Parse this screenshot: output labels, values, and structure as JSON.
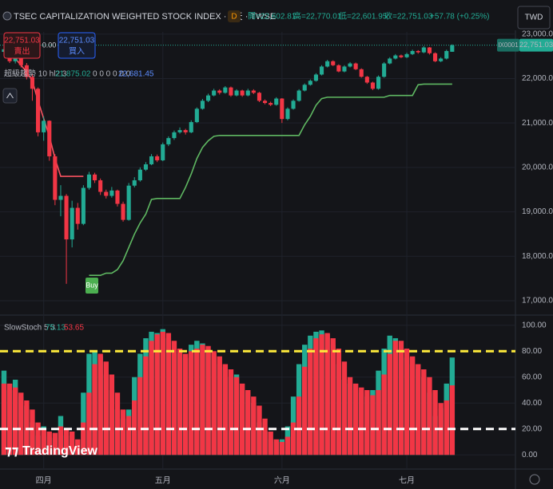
{
  "toolbar": {
    "title": "TSEC CAPITALIZATION WEIGHTED STOCK INDEX · 1天 · TWSE",
    "badge": "D",
    "open": "開=22,602.81",
    "high": "高=22,770.01",
    "low": "低=22,601.95",
    "close": "收=22,751.03",
    "change": "+57.78 (+0.25%)",
    "currency": "TWD"
  },
  "trade": {
    "sell_price": "22,751.03",
    "sell": "賣出",
    "spread": "0.00",
    "buy_price": "22,751.03",
    "buy": "買入"
  },
  "branding": "TradingView",
  "chart_data": [
    {
      "type": "candlestick",
      "symbol": "IX0001",
      "last_label": "22,751.03",
      "indicator": {
        "name": "超級趨勢 10 hl2 3",
        "values": [
          "21,875.02",
          "0 0 0 0 0 0",
          "22,681.45"
        ]
      },
      "signal": "Buy",
      "up_color": "#22ab94",
      "down_color": "#f23645",
      "grid": true,
      "x": [
        0,
        1,
        2,
        3,
        4,
        5,
        6,
        7,
        8,
        9,
        10,
        11,
        12,
        13,
        14,
        15,
        16,
        17,
        18,
        19,
        20,
        21,
        22,
        23,
        24,
        25,
        26,
        27,
        28,
        29,
        30,
        31,
        32,
        33,
        34,
        35,
        36,
        37,
        38,
        39,
        40,
        41,
        42,
        43,
        44,
        45,
        46,
        47,
        48,
        49,
        50,
        51,
        52,
        53,
        54,
        55,
        56,
        57,
        58,
        59,
        60,
        61,
        62,
        63,
        64,
        65,
        66,
        67,
        68,
        69,
        70,
        71,
        72,
        73,
        74,
        75,
        76,
        77,
        78,
        79
      ],
      "xlim": [
        -0.7,
        90.15
      ],
      "ylim": [
        16730,
        23050
      ],
      "yticks": [
        {
          "value": 17000,
          "label": "17,000.00"
        },
        {
          "value": 18000,
          "label": "18,000.00"
        },
        {
          "value": 19000,
          "label": "19,000.00"
        },
        {
          "value": 20000,
          "label": "20,000.00"
        },
        {
          "value": 21000,
          "label": "21,000.00"
        },
        {
          "value": 22000,
          "label": "22,000.00"
        },
        {
          "value": 23000,
          "label": "23,000.00"
        }
      ],
      "ohlc": [
        [
          22600,
          22720,
          22520,
          22660
        ],
        [
          22660,
          22700,
          22350,
          22390
        ],
        [
          22390,
          22560,
          22340,
          22480
        ],
        [
          22480,
          22520,
          22250,
          22300
        ],
        [
          22300,
          22350,
          21980,
          22035
        ],
        [
          22035,
          22100,
          21500,
          21770
        ],
        [
          21770,
          21800,
          20700,
          20790
        ],
        [
          20790,
          21150,
          20600,
          21050
        ],
        [
          21050,
          21060,
          20150,
          20250
        ],
        [
          20250,
          20300,
          19150,
          19270
        ],
        [
          19270,
          19600,
          18900,
          19360
        ],
        [
          19360,
          19400,
          17380,
          18380
        ],
        [
          18380,
          19250,
          18200,
          19090
        ],
        [
          19090,
          19200,
          18600,
          18730
        ],
        [
          18730,
          19600,
          18700,
          19540
        ],
        [
          19540,
          19900,
          19500,
          19840
        ],
        [
          19840,
          19880,
          19650,
          19710
        ],
        [
          19710,
          19750,
          19380,
          19450
        ],
        [
          19450,
          19500,
          19300,
          19360
        ],
        [
          19360,
          19560,
          19320,
          19480
        ],
        [
          19480,
          19500,
          19120,
          19180
        ],
        [
          19180,
          19230,
          18780,
          18820
        ],
        [
          18820,
          19650,
          18800,
          19590
        ],
        [
          19590,
          19780,
          19550,
          19710
        ],
        [
          19710,
          20000,
          19680,
          19950
        ],
        [
          19950,
          20120,
          19920,
          20070
        ],
        [
          20070,
          20300,
          20050,
          20250
        ],
        [
          20250,
          20290,
          20120,
          20160
        ],
        [
          20160,
          20560,
          20140,
          20520
        ],
        [
          20520,
          20700,
          20480,
          20660
        ],
        [
          20660,
          20830,
          20620,
          20790
        ],
        [
          20790,
          20900,
          20760,
          20840
        ],
        [
          20840,
          20870,
          20740,
          20790
        ],
        [
          20790,
          21060,
          20770,
          21020
        ],
        [
          21020,
          21350,
          21000,
          21320
        ],
        [
          21320,
          21540,
          21300,
          21500
        ],
        [
          21500,
          21660,
          21470,
          21620
        ],
        [
          21620,
          21770,
          21600,
          21730
        ],
        [
          21730,
          21760,
          21640,
          21680
        ],
        [
          21680,
          21830,
          21660,
          21800
        ],
        [
          21800,
          21820,
          21590,
          21620
        ],
        [
          21620,
          21760,
          21600,
          21730
        ],
        [
          21730,
          21750,
          21590,
          21620
        ],
        [
          21620,
          21770,
          21600,
          21730
        ],
        [
          21730,
          21760,
          21650,
          21680
        ],
        [
          21680,
          21700,
          21470,
          21500
        ],
        [
          21500,
          21530,
          21420,
          21450
        ],
        [
          21450,
          21480,
          21380,
          21410
        ],
        [
          21410,
          21580,
          21390,
          21550
        ],
        [
          21550,
          21560,
          21000,
          21090
        ],
        [
          21090,
          21350,
          21060,
          21320
        ],
        [
          21320,
          21530,
          21300,
          21500
        ],
        [
          21500,
          21760,
          21480,
          21730
        ],
        [
          21730,
          21890,
          21710,
          21860
        ],
        [
          21860,
          21980,
          21840,
          21950
        ],
        [
          21950,
          22120,
          21930,
          22090
        ],
        [
          22090,
          22300,
          22070,
          22270
        ],
        [
          22270,
          22420,
          22250,
          22390
        ],
        [
          22390,
          22410,
          22280,
          22300
        ],
        [
          22300,
          22320,
          22140,
          22160
        ],
        [
          22160,
          22300,
          22140,
          22270
        ],
        [
          22270,
          22370,
          22250,
          22340
        ],
        [
          22340,
          22360,
          22190,
          22210
        ],
        [
          22210,
          22230,
          22020,
          22040
        ],
        [
          22040,
          22060,
          21880,
          21910
        ],
        [
          21910,
          21930,
          21740,
          21770
        ],
        [
          21770,
          22070,
          21750,
          22040
        ],
        [
          22040,
          22370,
          22020,
          22340
        ],
        [
          22340,
          22480,
          22320,
          22450
        ],
        [
          22450,
          22550,
          22430,
          22520
        ],
        [
          22520,
          22540,
          22460,
          22480
        ],
        [
          22480,
          22580,
          22460,
          22550
        ],
        [
          22550,
          22650,
          22530,
          22620
        ],
        [
          22620,
          22640,
          22560,
          22590
        ],
        [
          22590,
          22730,
          22570,
          22700
        ],
        [
          22700,
          22710,
          22540,
          22570
        ],
        [
          22570,
          22590,
          22370,
          22390
        ],
        [
          22390,
          22480,
          22370,
          22450
        ],
        [
          22450,
          22650,
          22430,
          22620
        ],
        [
          22602.81,
          22770.01,
          22601.95,
          22751.03
        ]
      ],
      "series": [
        {
          "color": "#f7525f",
          "values": [
            22750,
            22600,
            22450,
            22300,
            22150,
            21950,
            21500,
            21100,
            20700,
            20200,
            19800,
            19800,
            19800,
            19800,
            19800,
            null,
            null,
            null,
            null,
            null,
            null,
            null,
            null,
            null,
            null,
            null,
            null,
            null,
            null,
            null,
            null,
            null,
            null,
            null,
            null,
            null,
            null,
            null,
            null,
            null,
            null,
            null,
            null,
            null,
            null,
            null,
            null,
            null,
            null,
            null,
            null,
            null,
            null,
            null,
            null,
            null,
            null,
            null,
            null,
            null,
            null,
            null,
            null,
            null,
            null,
            null,
            null,
            null,
            null,
            null,
            null,
            null,
            null,
            null,
            null,
            null,
            null,
            null,
            null,
            null
          ]
        },
        {
          "color": "#5fb862",
          "values": [
            null,
            null,
            null,
            null,
            null,
            null,
            null,
            null,
            null,
            null,
            null,
            null,
            null,
            null,
            null,
            17570,
            17570,
            17570,
            17620,
            17620,
            17700,
            17900,
            18200,
            18500,
            18750,
            18950,
            19280,
            19300,
            19300,
            19300,
            19300,
            19300,
            19550,
            19850,
            20200,
            20450,
            20600,
            20700,
            20720,
            20720,
            20720,
            20720,
            20720,
            20720,
            20720,
            20720,
            20720,
            20720,
            20720,
            20720,
            20720,
            20720,
            20720,
            20960,
            21150,
            21400,
            21550,
            21580,
            21580,
            21580,
            21580,
            21580,
            21580,
            21580,
            21580,
            21580,
            21580,
            21580,
            21620,
            21620,
            21620,
            21620,
            21620,
            21860,
            21875.02,
            21875.02,
            21875.02,
            21875.02,
            21875.02,
            21875.02
          ]
        }
      ]
    },
    {
      "type": "column",
      "title": "SlowStoch 5 3",
      "grid": true,
      "x": [
        0,
        1,
        2,
        3,
        4,
        5,
        6,
        7,
        8,
        9,
        10,
        11,
        12,
        13,
        14,
        15,
        16,
        17,
        18,
        19,
        20,
        21,
        22,
        23,
        24,
        25,
        26,
        27,
        28,
        29,
        30,
        31,
        32,
        33,
        34,
        35,
        36,
        37,
        38,
        39,
        40,
        41,
        42,
        43,
        44,
        45,
        46,
        47,
        48,
        49,
        50,
        51,
        52,
        53,
        54,
        55,
        56,
        57,
        58,
        59,
        60,
        61,
        62,
        63,
        64,
        65,
        66,
        67,
        68,
        69,
        70,
        71,
        72,
        73,
        74,
        75,
        76,
        77,
        78,
        79
      ],
      "xlim": [
        -0.7,
        90.15
      ],
      "ylim": [
        -6,
        106
      ],
      "xticks": [
        {
          "value": 7,
          "label": "四月"
        },
        {
          "value": 28,
          "label": "五月"
        },
        {
          "value": 49,
          "label": "六月"
        },
        {
          "value": 71,
          "label": "七月"
        }
      ],
      "yticks": [
        {
          "value": 0,
          "label": "0.00"
        },
        {
          "value": 20,
          "label": "20.00"
        },
        {
          "value": 40,
          "label": "40.00"
        },
        {
          "value": 60,
          "label": "60.00"
        },
        {
          "value": 80,
          "label": "80.00"
        },
        {
          "value": 100,
          "label": "100.00"
        }
      ],
      "hlines": [
        {
          "value": 80,
          "color": "#ffeb3b"
        },
        {
          "value": 20,
          "color": "#ffffff"
        }
      ],
      "series": [
        {
          "color": "#22ab94",
          "values": [
            65,
            50,
            58,
            45,
            38,
            25,
            15,
            22,
            14,
            13,
            30,
            15,
            12,
            8,
            48,
            78,
            80,
            76,
            62,
            50,
            35,
            28,
            35,
            60,
            78,
            90,
            95,
            94,
            97,
            90,
            80,
            78,
            75,
            85,
            88,
            86,
            80,
            78,
            70,
            68,
            60,
            62,
            50,
            48,
            40,
            25,
            18,
            12,
            10,
            12,
            22,
            45,
            70,
            85,
            92,
            95,
            96,
            93,
            85,
            70,
            58,
            55,
            50,
            48,
            45,
            50,
            65,
            82,
            92,
            90,
            82,
            75,
            70,
            66,
            60,
            48,
            30,
            36,
            55,
            75.13
          ]
        },
        {
          "color": "#f23645",
          "values": [
            55,
            55,
            52,
            48,
            42,
            35,
            25,
            20,
            18,
            17,
            22,
            20,
            18,
            12,
            25,
            48,
            70,
            78,
            72,
            62,
            48,
            35,
            30,
            42,
            60,
            76,
            88,
            93,
            95,
            94,
            88,
            82,
            78,
            80,
            82,
            85,
            84,
            80,
            76,
            70,
            66,
            60,
            55,
            50,
            45,
            38,
            28,
            18,
            12,
            10,
            14,
            25,
            45,
            68,
            82,
            90,
            93,
            94,
            90,
            82,
            72,
            60,
            55,
            52,
            50,
            46,
            50,
            62,
            78,
            88,
            88,
            82,
            76,
            70,
            66,
            60,
            50,
            40,
            42,
            53.65
          ]
        }
      ]
    }
  ]
}
